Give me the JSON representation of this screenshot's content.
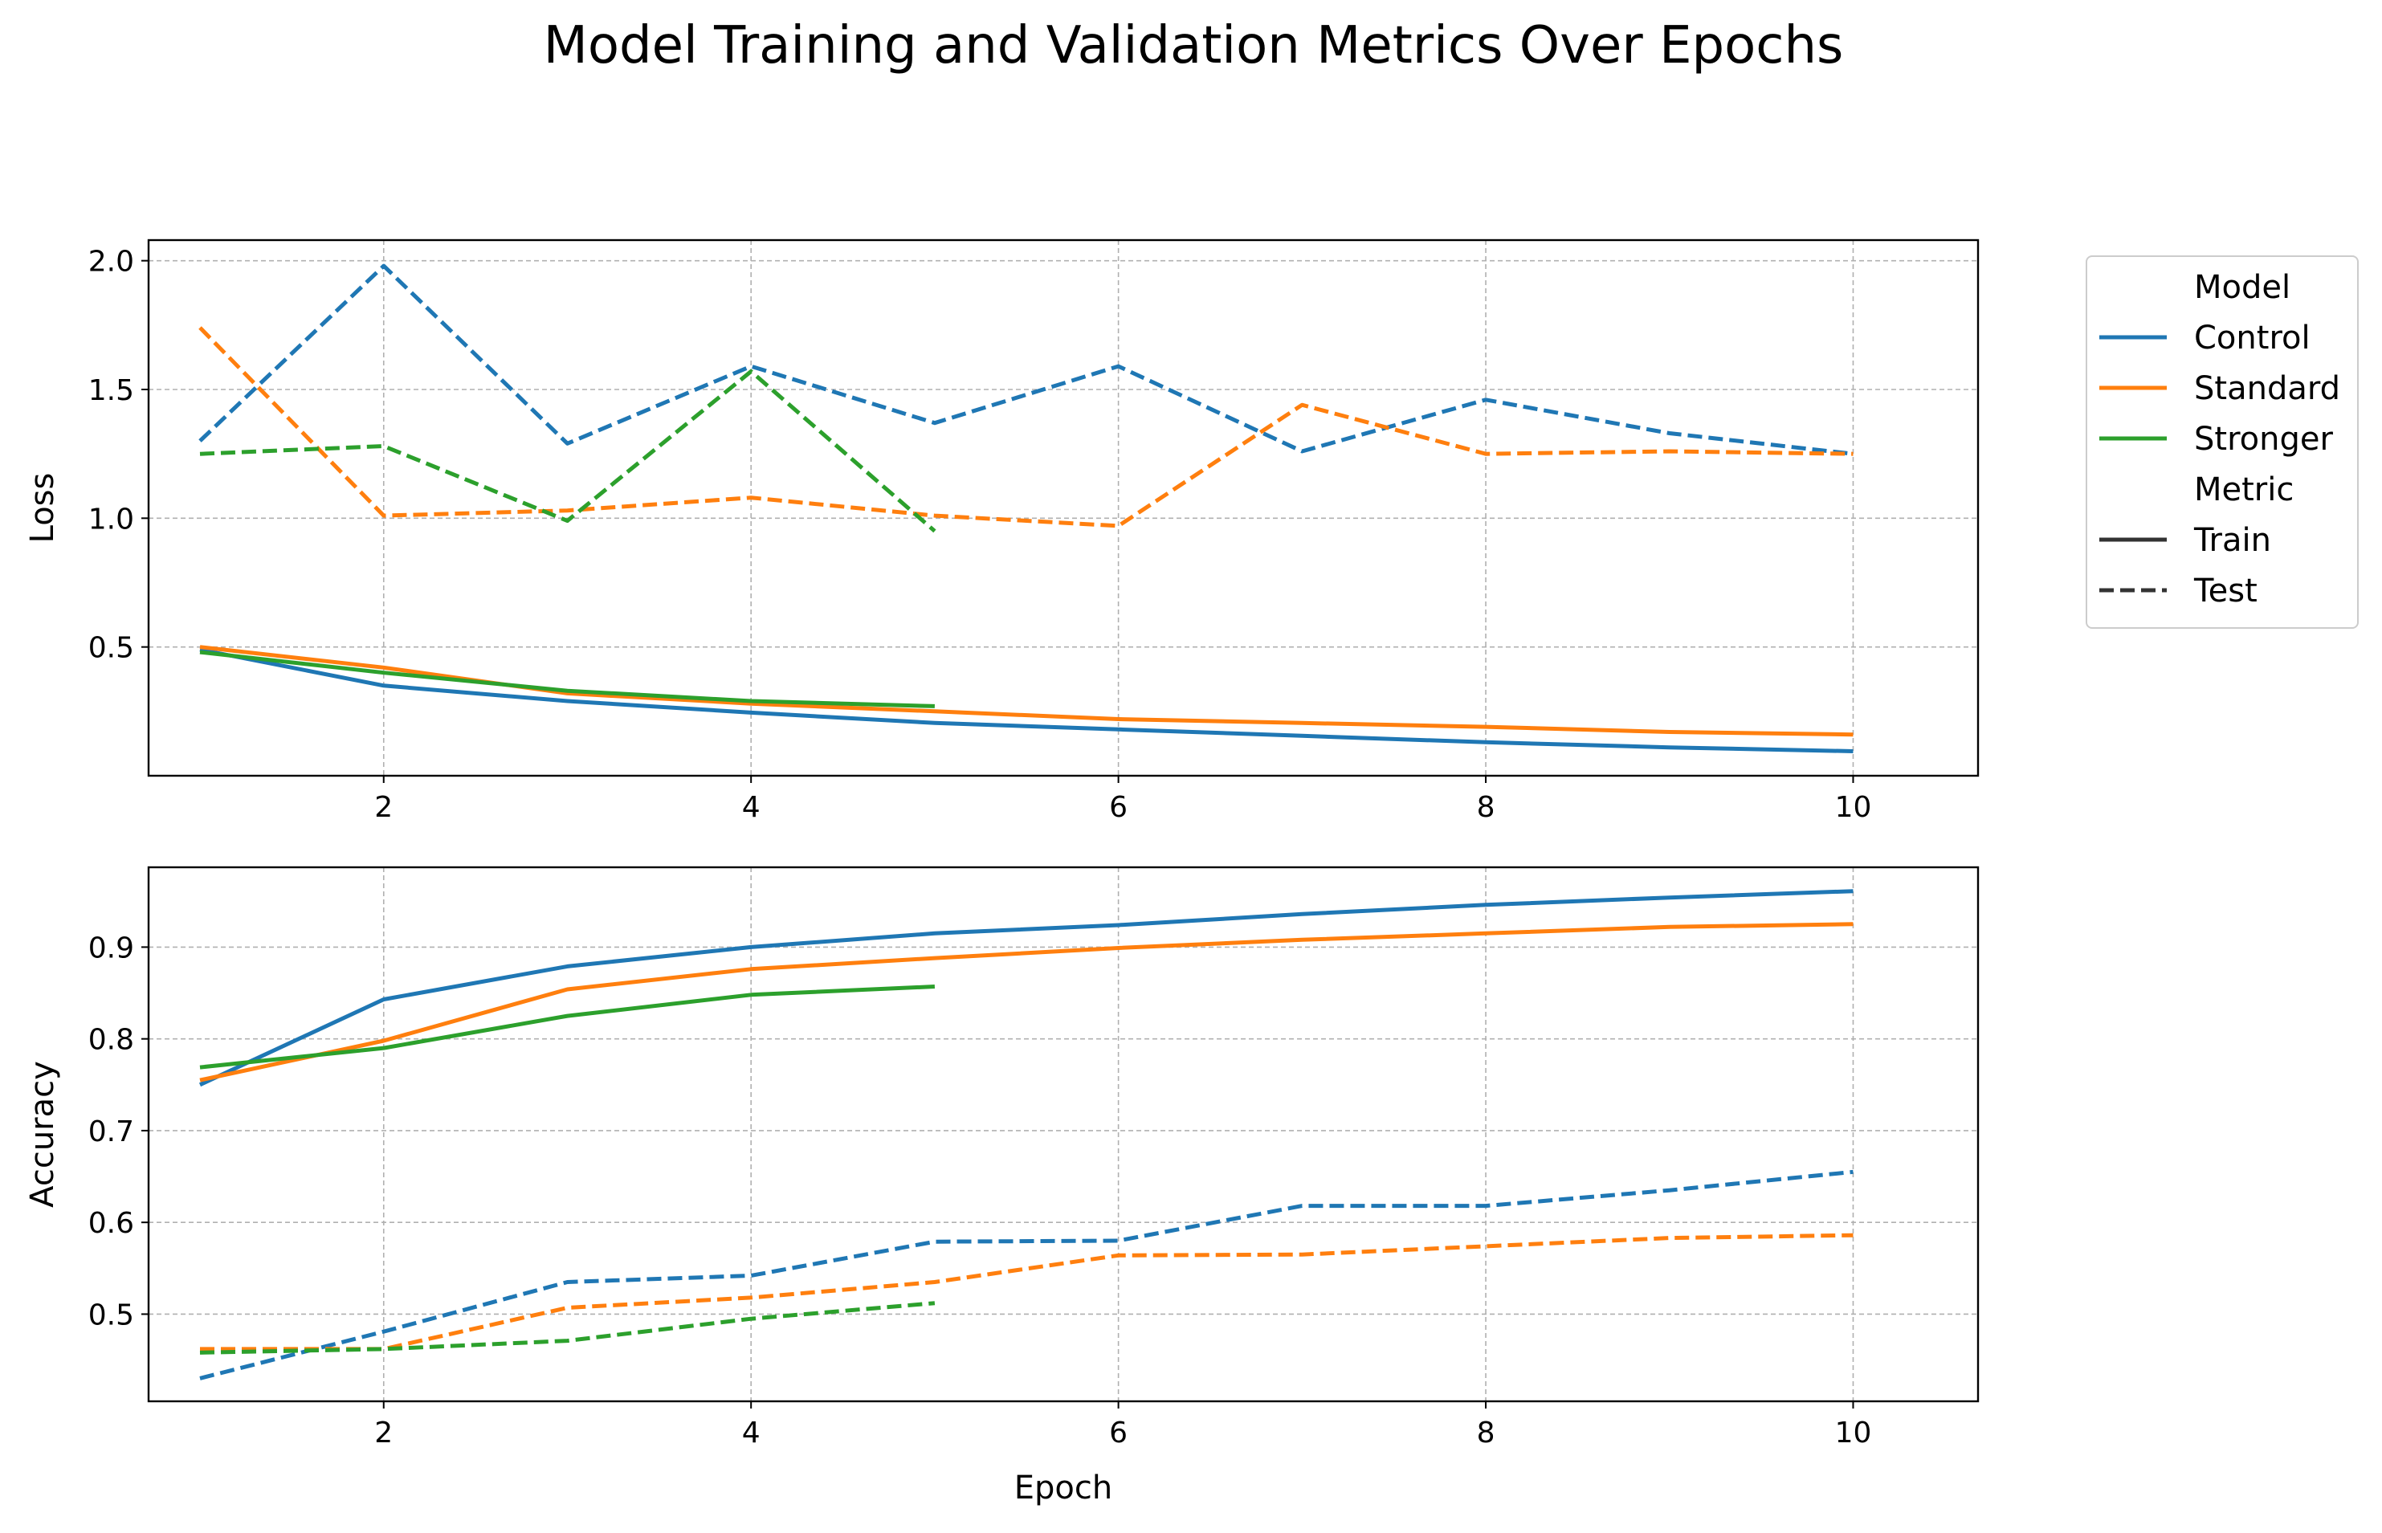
{
  "chart_data": {
    "type": "line",
    "title": "Model Training and Validation Metrics Over Epochs",
    "xlabel": "Epoch",
    "legend": {
      "placement": "outside-right",
      "sections": [
        {
          "title": "Model",
          "entries": [
            {
              "label": "Control",
              "color": "#1f77b4",
              "dash": "solid"
            },
            {
              "label": "Standard",
              "color": "#ff7f0e",
              "dash": "solid"
            },
            {
              "label": "Stronger",
              "color": "#2ca02c",
              "dash": "solid"
            }
          ]
        },
        {
          "title": "Metric",
          "entries": [
            {
              "label": "Train",
              "color": "#333333",
              "dash": "solid"
            },
            {
              "label": "Test",
              "color": "#333333",
              "dash": "dashed"
            }
          ]
        }
      ]
    },
    "grid": true,
    "subplots": [
      {
        "ylabel": "Loss",
        "xlim": [
          0.72,
          10.68
        ],
        "ylim": [
          0.0,
          2.08
        ],
        "xticks": [
          2,
          4,
          6,
          8,
          10
        ],
        "yticks": [
          0.5,
          1.0,
          1.5,
          2.0
        ],
        "xtick_labels": [
          "2",
          "4",
          "6",
          "8",
          "10"
        ],
        "ytick_labels": [
          "0.5",
          "1.0",
          "1.5",
          "2.0"
        ],
        "series": [
          {
            "model": "Control",
            "metric": "Train",
            "color": "#1f77b4",
            "x": [
              1,
              2,
              3,
              4,
              5,
              6,
              7,
              8,
              9,
              10
            ],
            "y": [
              0.49,
              0.35,
              0.29,
              0.245,
              0.205,
              0.18,
              0.155,
              0.13,
              0.11,
              0.095
            ]
          },
          {
            "model": "Standard",
            "metric": "Train",
            "color": "#ff7f0e",
            "x": [
              1,
              2,
              3,
              4,
              5,
              6,
              7,
              8,
              9,
              10
            ],
            "y": [
              0.5,
              0.42,
              0.32,
              0.28,
              0.25,
              0.22,
              0.205,
              0.19,
              0.17,
              0.16
            ]
          },
          {
            "model": "Stronger",
            "metric": "Train",
            "color": "#2ca02c",
            "x": [
              1,
              2,
              3,
              4,
              5
            ],
            "y": [
              0.48,
              0.4,
              0.33,
              0.29,
              0.27
            ]
          },
          {
            "model": "Control",
            "metric": "Test",
            "color": "#1f77b4",
            "x": [
              1,
              2,
              3,
              4,
              5,
              6,
              7,
              8,
              9,
              10
            ],
            "y": [
              1.3,
              1.98,
              1.29,
              1.59,
              1.37,
              1.59,
              1.26,
              1.46,
              1.33,
              1.25
            ]
          },
          {
            "model": "Standard",
            "metric": "Test",
            "color": "#ff7f0e",
            "x": [
              1,
              2,
              3,
              4,
              5,
              6,
              7,
              8,
              9,
              10
            ],
            "y": [
              1.74,
              1.01,
              1.03,
              1.08,
              1.01,
              0.97,
              1.44,
              1.25,
              1.26,
              1.25
            ]
          },
          {
            "model": "Stronger",
            "metric": "Test",
            "color": "#2ca02c",
            "x": [
              1,
              2,
              3,
              4,
              5
            ],
            "y": [
              1.25,
              1.28,
              0.99,
              1.57,
              0.95
            ]
          }
        ]
      },
      {
        "ylabel": "Accuracy",
        "xlim": [
          0.72,
          10.68
        ],
        "ylim": [
          0.405,
          0.987
        ],
        "xticks": [
          2,
          4,
          6,
          8,
          10
        ],
        "yticks": [
          0.5,
          0.6,
          0.7,
          0.8,
          0.9
        ],
        "xtick_labels": [
          "2",
          "4",
          "6",
          "8",
          "10"
        ],
        "ytick_labels": [
          "0.5",
          "0.6",
          "0.7",
          "0.8",
          "0.9"
        ],
        "series": [
          {
            "model": "Control",
            "metric": "Train",
            "color": "#1f77b4",
            "x": [
              1,
              2,
              3,
              4,
              5,
              6,
              7,
              8,
              9,
              10
            ],
            "y": [
              0.75,
              0.843,
              0.879,
              0.9,
              0.915,
              0.924,
              0.936,
              0.946,
              0.954,
              0.961
            ]
          },
          {
            "model": "Standard",
            "metric": "Train",
            "color": "#ff7f0e",
            "x": [
              1,
              2,
              3,
              4,
              5,
              6,
              7,
              8,
              9,
              10
            ],
            "y": [
              0.755,
              0.798,
              0.854,
              0.876,
              0.888,
              0.899,
              0.908,
              0.915,
              0.922,
              0.925
            ]
          },
          {
            "model": "Stronger",
            "metric": "Train",
            "color": "#2ca02c",
            "x": [
              1,
              2,
              3,
              4,
              5
            ],
            "y": [
              0.769,
              0.79,
              0.825,
              0.848,
              0.857
            ]
          },
          {
            "model": "Control",
            "metric": "Test",
            "color": "#1f77b4",
            "x": [
              1,
              2,
              3,
              4,
              5,
              6,
              7,
              8,
              9,
              10
            ],
            "y": [
              0.43,
              0.481,
              0.535,
              0.542,
              0.579,
              0.58,
              0.618,
              0.618,
              0.635,
              0.655
            ]
          },
          {
            "model": "Standard",
            "metric": "Test",
            "color": "#ff7f0e",
            "x": [
              1,
              2,
              3,
              4,
              5,
              6,
              7,
              8,
              9,
              10
            ],
            "y": [
              0.462,
              0.462,
              0.507,
              0.518,
              0.535,
              0.564,
              0.565,
              0.574,
              0.583,
              0.586
            ]
          },
          {
            "model": "Stronger",
            "metric": "Test",
            "color": "#2ca02c",
            "x": [
              1,
              2,
              3,
              4,
              5
            ],
            "y": [
              0.458,
              0.462,
              0.471,
              0.495,
              0.512
            ]
          }
        ]
      }
    ]
  }
}
